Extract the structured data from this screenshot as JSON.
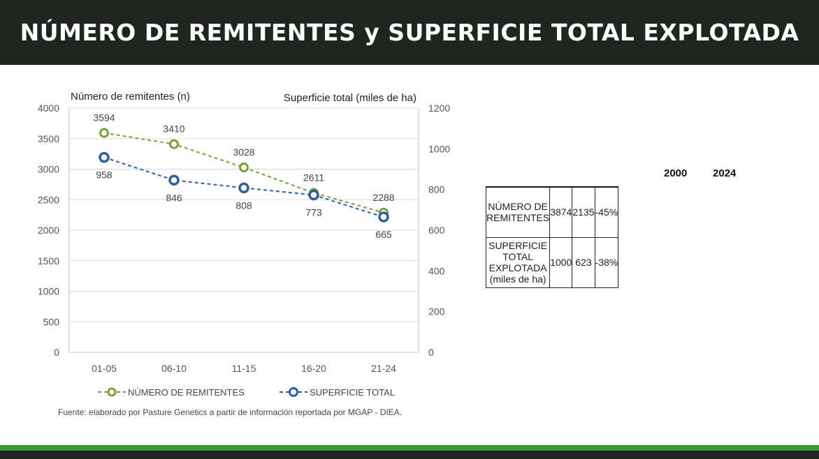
{
  "header": {
    "title": "NÚMERO DE REMITENTES y SUPERFICIE TOTAL EXPLOTADA"
  },
  "colors": {
    "header_bg": "#1f2620",
    "footer_green": "#3a9a3a",
    "series_green": "#7a9e3a",
    "series_blue": "#2e5f9e"
  },
  "chart_data": {
    "type": "line",
    "categories": [
      "01-05",
      "06-10",
      "11-15",
      "16-20",
      "21-24"
    ],
    "ylabel_left": "Número de remitentes (n)",
    "ylabel_right": "Superficie total (miles de ha)",
    "ylim_left": [
      0,
      4000
    ],
    "ylim_right": [
      0,
      1200
    ],
    "yticks_left": [
      "0",
      "500",
      "1000",
      "1500",
      "2000",
      "2500",
      "3000",
      "3500",
      "4000"
    ],
    "yticks_right": [
      "0",
      "200",
      "400",
      "600",
      "800",
      "1000",
      "1200"
    ],
    "grid": true,
    "legend_position": "bottom",
    "series": [
      {
        "name": "NÚMERO DE REMITENTES",
        "axis": "left",
        "color": "#7a9e3a",
        "dashed": true,
        "values": [
          3594,
          3410,
          3028,
          2611,
          2288
        ],
        "labels": [
          "3594",
          "3410",
          "3028",
          "2611",
          "2288"
        ]
      },
      {
        "name": "SUPERFICIE TOTAL",
        "axis": "right",
        "color": "#2e5f9e",
        "dashed": true,
        "values": [
          958,
          846,
          808,
          773,
          665
        ],
        "labels": [
          "958",
          "846",
          "808",
          "773",
          "665"
        ]
      }
    ]
  },
  "source": "Fuente: elaborado por Pasture Genetics a partir de información reportada por MGAP - DIEA.",
  "table": {
    "year1": "2000",
    "year2": "2024",
    "rows": [
      {
        "label": "NÚMERO DE REMITENTES",
        "sublabel": "",
        "v1": "3874",
        "v2": "2135",
        "change": "-45%"
      },
      {
        "label": "SUPERFICIE TOTAL EXPLOTADA",
        "sublabel": "(miles de ha)",
        "v1": "1000",
        "v2": "623",
        "change": "-38%"
      }
    ]
  }
}
